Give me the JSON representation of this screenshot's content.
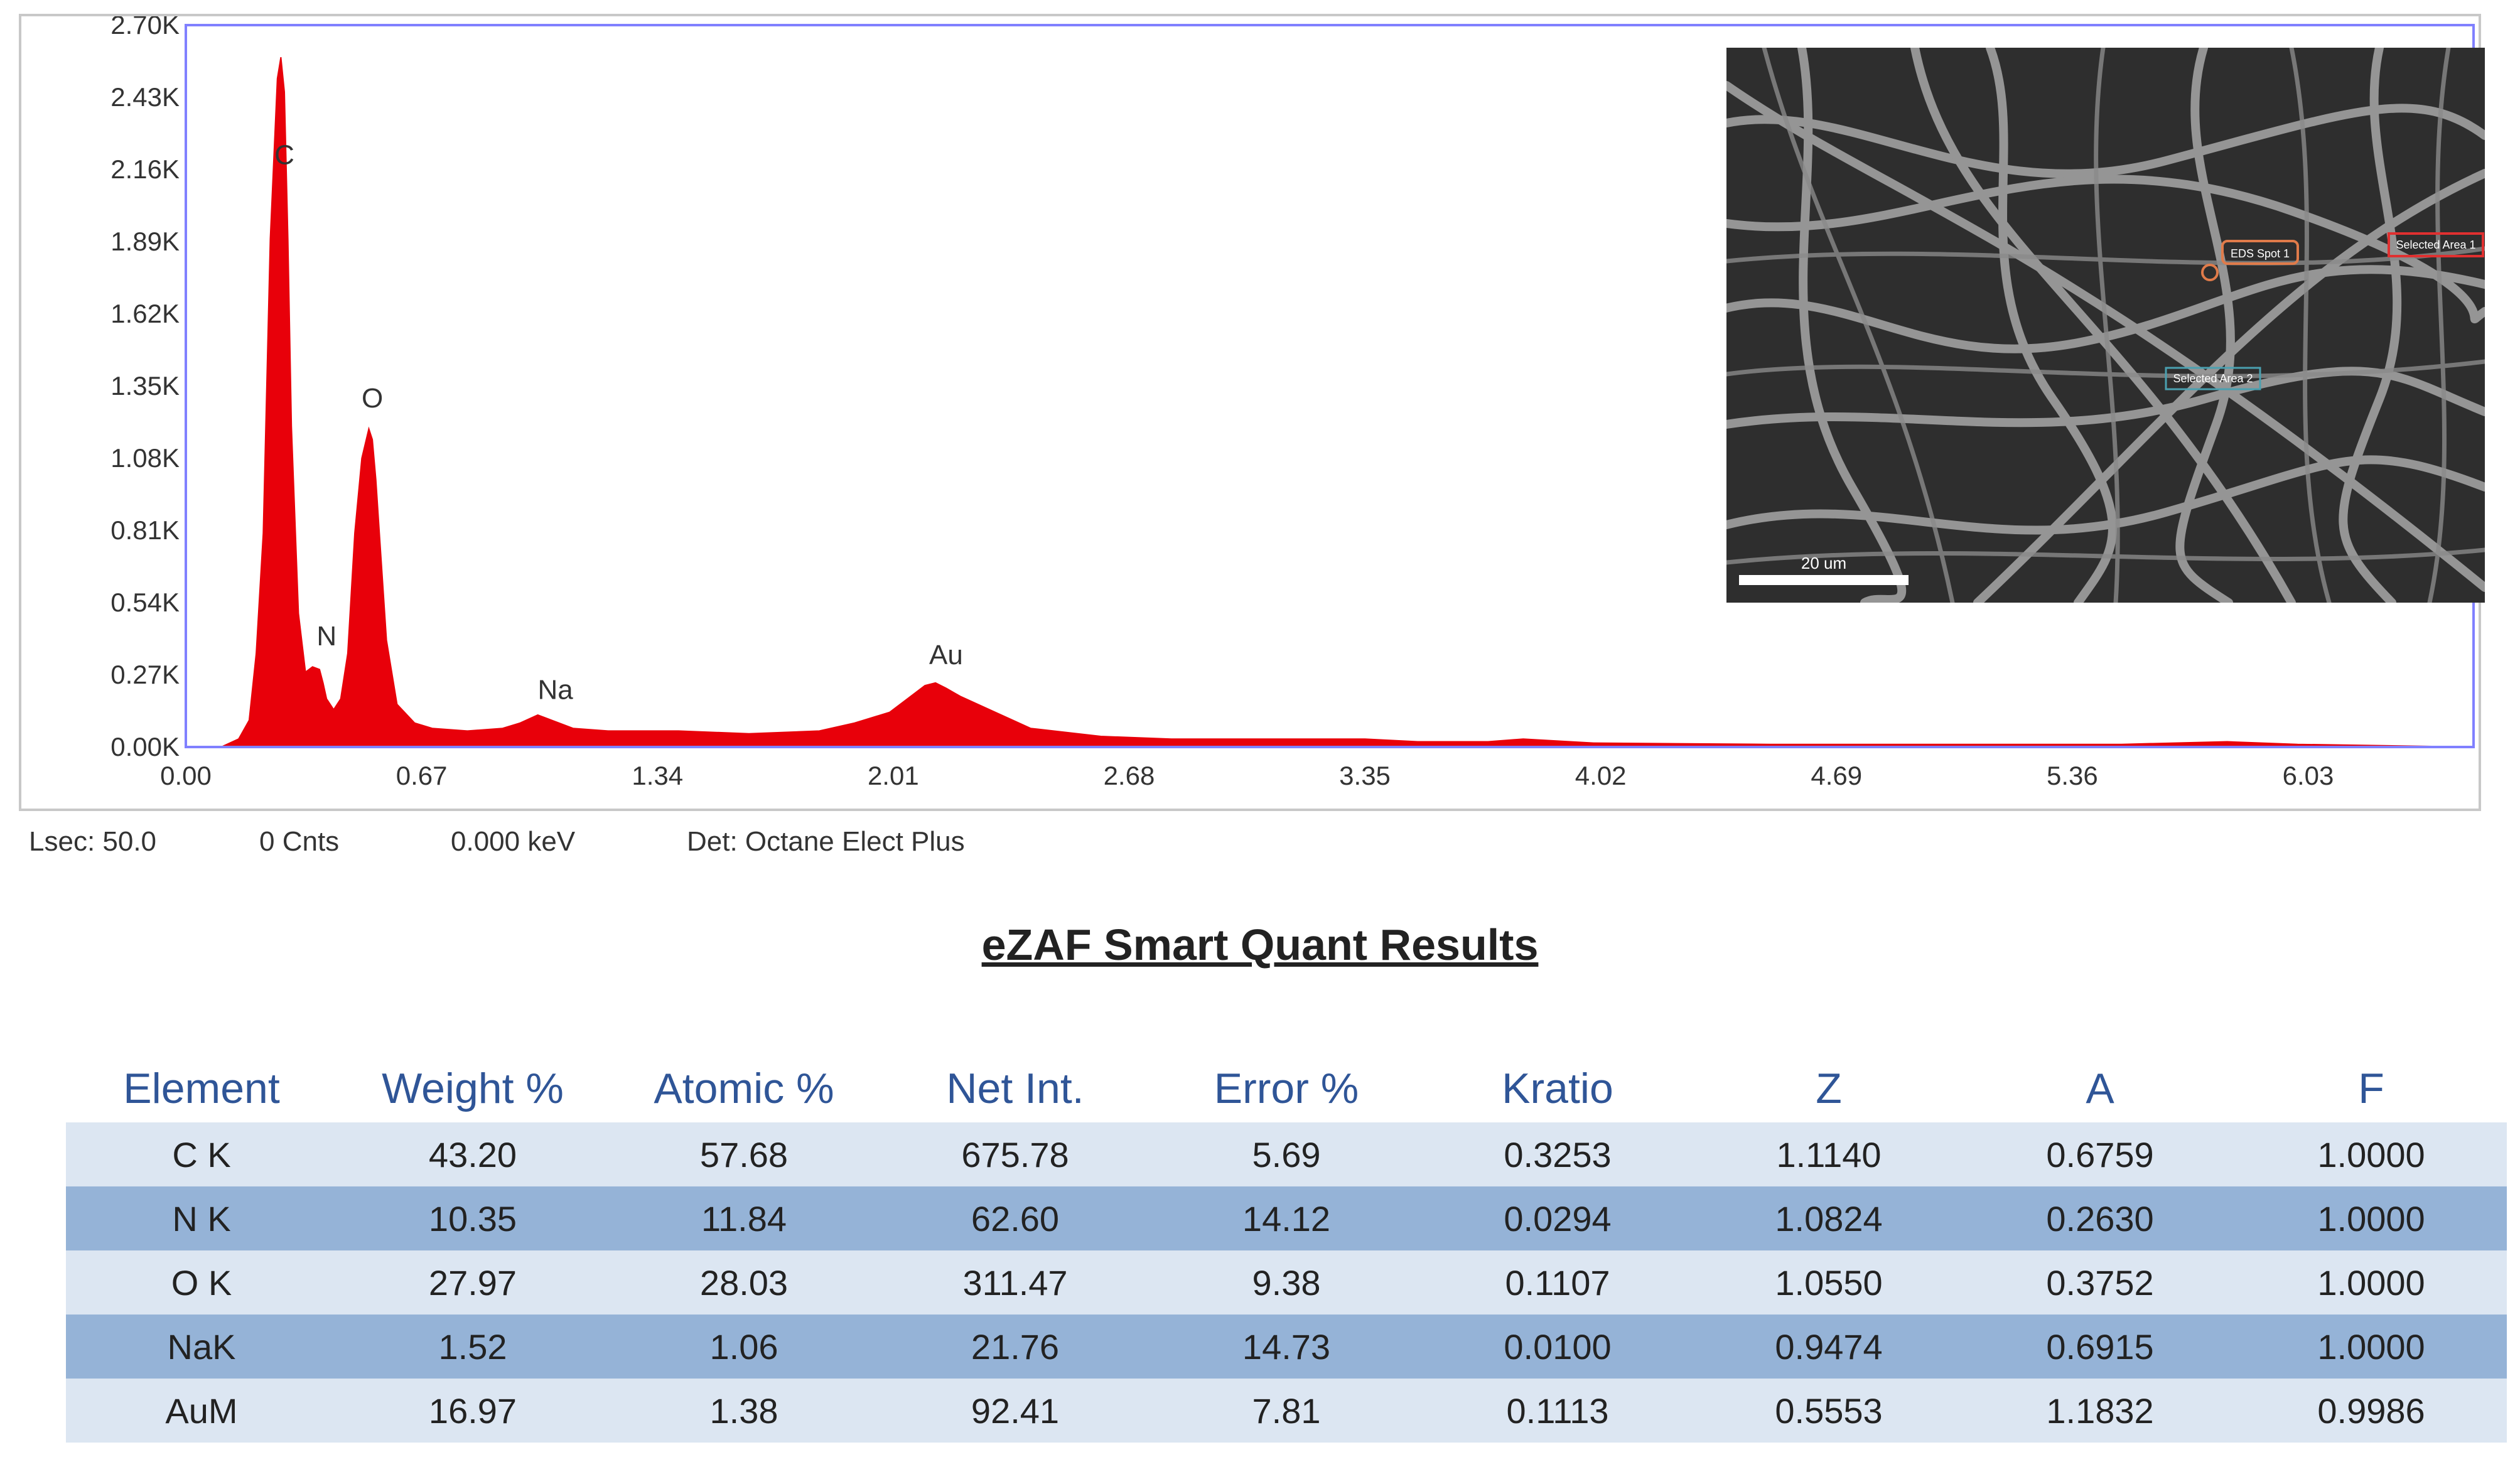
{
  "chart_data": {
    "type": "area",
    "title": "",
    "xlabel": "",
    "ylabel": "",
    "xlim": [
      0.0,
      6.5
    ],
    "ylim": [
      0.0,
      2.7
    ],
    "x_ticks": [
      "0.00",
      "0.67",
      "1.34",
      "2.01",
      "2.68",
      "3.35",
      "4.02",
      "4.69",
      "5.36",
      "6.03"
    ],
    "y_ticks": [
      "0.00K",
      "0.27K",
      "0.54K",
      "0.81K",
      "1.08K",
      "1.35K",
      "1.62K",
      "1.89K",
      "2.16K",
      "2.43K",
      "2.70K"
    ],
    "series": [
      {
        "color": "#e8000a",
        "x": [
          0.0,
          0.1,
          0.15,
          0.18,
          0.2,
          0.22,
          0.24,
          0.26,
          0.27,
          0.28,
          0.29,
          0.3,
          0.32,
          0.34,
          0.36,
          0.38,
          0.39,
          0.4,
          0.42,
          0.44,
          0.46,
          0.48,
          0.5,
          0.52,
          0.53,
          0.54,
          0.55,
          0.57,
          0.6,
          0.65,
          0.7,
          0.8,
          0.9,
          0.95,
          1.0,
          1.04,
          1.1,
          1.2,
          1.4,
          1.6,
          1.8,
          1.9,
          2.0,
          2.05,
          2.1,
          2.13,
          2.16,
          2.2,
          2.3,
          2.4,
          2.6,
          2.8,
          3.0,
          3.35,
          3.5,
          3.7,
          3.8,
          4.0,
          4.5,
          5.0,
          5.5,
          5.8,
          6.0,
          6.5
        ],
        "y": [
          0.0,
          0.0,
          0.03,
          0.1,
          0.35,
          0.8,
          1.9,
          2.5,
          2.58,
          2.45,
          1.9,
          1.2,
          0.5,
          0.28,
          0.3,
          0.29,
          0.24,
          0.18,
          0.14,
          0.18,
          0.35,
          0.8,
          1.08,
          1.19,
          1.15,
          1.0,
          0.8,
          0.4,
          0.16,
          0.09,
          0.07,
          0.06,
          0.07,
          0.09,
          0.12,
          0.1,
          0.07,
          0.06,
          0.06,
          0.05,
          0.06,
          0.09,
          0.13,
          0.18,
          0.23,
          0.24,
          0.22,
          0.19,
          0.13,
          0.07,
          0.04,
          0.03,
          0.03,
          0.03,
          0.02,
          0.02,
          0.03,
          0.015,
          0.01,
          0.01,
          0.01,
          0.02,
          0.01,
          0.0
        ]
      }
    ],
    "peak_labels": [
      {
        "label": "C",
        "x": 0.28,
        "y": 2.18
      },
      {
        "label": "N",
        "x": 0.4,
        "y": 0.38
      },
      {
        "label": "O",
        "x": 0.53,
        "y": 1.27
      },
      {
        "label": "Na",
        "x": 1.05,
        "y": 0.18
      },
      {
        "label": "Au",
        "x": 2.16,
        "y": 0.31
      }
    ],
    "inset": {
      "scale_bar_label": "20 um",
      "markers": [
        "EDS Spot 1",
        "Selected Area 1",
        "Selected Area 2"
      ]
    }
  },
  "status_bar": {
    "lsec": "Lsec: 50.0",
    "cnts": "0 Cnts",
    "kev": "0.000 keV",
    "detector": "Det: Octane Elect Plus"
  },
  "results": {
    "title": "eZAF Smart Quant Results",
    "headers": [
      "Element",
      "Weight %",
      "Atomic %",
      "Net Int.",
      "Error %",
      "Kratio",
      "Z",
      "A",
      "F"
    ],
    "rows": [
      [
        "C K",
        "43.20",
        "57.68",
        "675.78",
        "5.69",
        "0.3253",
        "1.1140",
        "0.6759",
        "1.0000"
      ],
      [
        "N K",
        "10.35",
        "11.84",
        "62.60",
        "14.12",
        "0.0294",
        "1.0824",
        "0.2630",
        "1.0000"
      ],
      [
        "O K",
        "27.97",
        "28.03",
        "311.47",
        "9.38",
        "0.1107",
        "1.0550",
        "0.3752",
        "1.0000"
      ],
      [
        "NaK",
        "1.52",
        "1.06",
        "21.76",
        "14.73",
        "0.0100",
        "0.9474",
        "0.6915",
        "1.0000"
      ],
      [
        "AuM",
        "16.97",
        "1.38",
        "92.41",
        "7.81",
        "0.1113",
        "0.5553",
        "1.1832",
        "0.9986"
      ]
    ]
  },
  "colors": {
    "spectrum": "#e8000a",
    "plot_frame": "#8080ff",
    "header_text": "#2f5597",
    "row_light": "#dce6f2",
    "row_dark": "#95b3d7"
  }
}
